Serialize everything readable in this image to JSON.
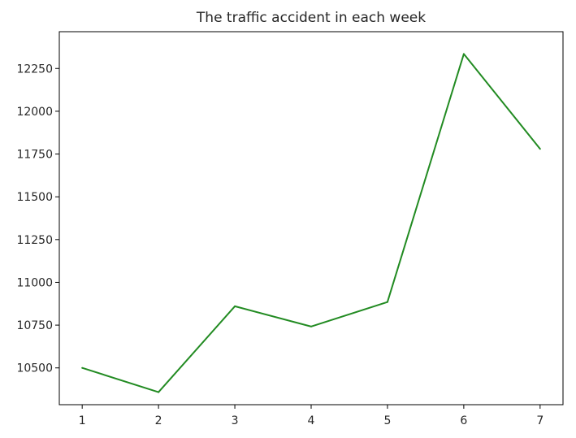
{
  "chart_data": {
    "type": "line",
    "title": "The traffic accident in each week",
    "xlabel": "",
    "ylabel": "",
    "x": [
      1,
      2,
      3,
      4,
      5,
      6,
      7
    ],
    "series": [
      {
        "values": [
          10500,
          10358,
          10860,
          10742,
          10885,
          12335,
          11780
        ],
        "color": "#228b22"
      }
    ],
    "xlim": [
      0.7,
      7.3
    ],
    "ylim": [
      10285,
      12465
    ],
    "xticks": [
      1,
      2,
      3,
      4,
      5,
      6,
      7
    ],
    "yticks": [
      10500,
      10750,
      11000,
      11250,
      11500,
      11750,
      12000,
      12250
    ],
    "grid": false,
    "legend": "none"
  }
}
